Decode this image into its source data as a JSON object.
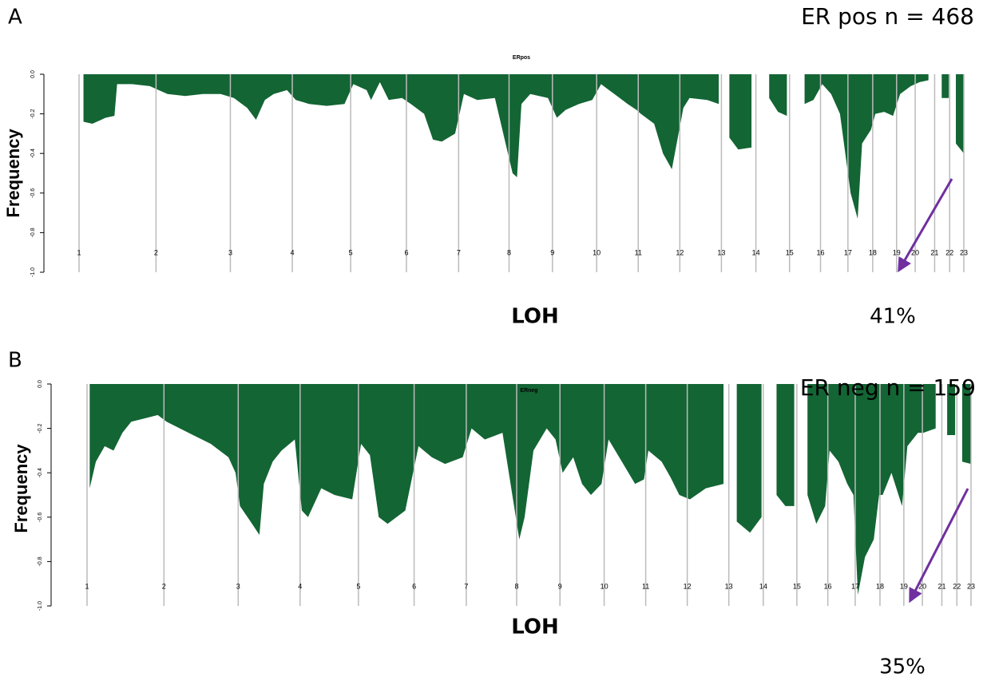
{
  "chart_data": [
    {
      "type": "area",
      "panel": "A",
      "title": "ERpos",
      "annotation": "ER pos n = 468",
      "percent_label": "41%",
      "x_label": "LOH",
      "y_label": "Frequency",
      "color": "#136534",
      "grid": true,
      "xlim": [
        0,
        100
      ],
      "ylim": [
        -1,
        0
      ],
      "yticks": [
        {
          "value": 0,
          "label": "0.0"
        },
        -0.2,
        -0.4,
        -0.6,
        -0.8,
        {
          "value": -1,
          "label": "-1.0"
        }
      ],
      "xticks": [
        {
          "value": 0,
          "label": "1"
        },
        {
          "value": 8.7,
          "label": "2"
        },
        {
          "value": 17.1,
          "label": "3"
        },
        {
          "value": 24.1,
          "label": "4"
        },
        {
          "value": 30.7,
          "label": "5"
        },
        {
          "value": 37.0,
          "label": "6"
        },
        {
          "value": 42.9,
          "label": "7"
        },
        {
          "value": 48.6,
          "label": "8"
        },
        {
          "value": 53.5,
          "label": "9"
        },
        {
          "value": 58.5,
          "label": "10"
        },
        {
          "value": 63.2,
          "label": "11"
        },
        {
          "value": 67.9,
          "label": "12"
        },
        {
          "value": 72.6,
          "label": "13"
        },
        {
          "value": 76.5,
          "label": "14"
        },
        {
          "value": 80.3,
          "label": "15"
        },
        {
          "value": 83.8,
          "label": "16"
        },
        {
          "value": 86.9,
          "label": "17"
        },
        {
          "value": 89.7,
          "label": "18"
        },
        {
          "value": 92.4,
          "label": "19"
        },
        {
          "value": 94.5,
          "label": "20"
        },
        {
          "value": 96.7,
          "label": "21"
        },
        {
          "value": 98.4,
          "label": "22"
        },
        {
          "value": 100,
          "label": "23"
        }
      ],
      "x": [
        0.5,
        1.5,
        3,
        4,
        4.3,
        6,
        8,
        9,
        10,
        12,
        14,
        16,
        17.5,
        19,
        20,
        21,
        22,
        23.5,
        24.5,
        26,
        28,
        30,
        31,
        32.5,
        33,
        34,
        35,
        36.5,
        37.5,
        39,
        40,
        41,
        42.5,
        43.5,
        45,
        47,
        49,
        49.5,
        50,
        51,
        53,
        54,
        55,
        56.5,
        58,
        59,
        60.5,
        62,
        63,
        63.5,
        65,
        66,
        67,
        68.3,
        69,
        71,
        72.3,
        72.9,
        73.5,
        74.5,
        76,
        77,
        78,
        79,
        80,
        81,
        82,
        83,
        84,
        85,
        86,
        87.2,
        88,
        88.5,
        89.5,
        90,
        91,
        92,
        92.8,
        94,
        95,
        96,
        97,
        97.5,
        98.3,
        98.7,
        99.1,
        100
      ],
      "values": [
        -0.24,
        -0.25,
        -0.22,
        -0.21,
        -0.05,
        -0.05,
        -0.06,
        -0.08,
        -0.1,
        -0.11,
        -0.1,
        -0.1,
        -0.12,
        -0.17,
        -0.23,
        -0.13,
        -0.1,
        -0.08,
        -0.13,
        -0.15,
        -0.16,
        -0.15,
        -0.05,
        -0.08,
        -0.13,
        -0.04,
        -0.13,
        -0.12,
        -0.15,
        -0.2,
        -0.33,
        -0.34,
        -0.3,
        -0.1,
        -0.13,
        -0.12,
        -0.5,
        -0.52,
        -0.15,
        -0.1,
        -0.12,
        -0.22,
        -0.18,
        -0.15,
        -0.13,
        -0.05,
        -0.1,
        -0.15,
        -0.18,
        -0.2,
        -0.25,
        -0.4,
        -0.48,
        -0.17,
        -0.12,
        -0.13,
        -0.15,
        null,
        -0.32,
        -0.38,
        -0.37,
        null,
        -0.12,
        -0.19,
        -0.21,
        null,
        -0.15,
        -0.13,
        -0.05,
        -0.1,
        -0.2,
        -0.6,
        -0.73,
        -0.35,
        -0.28,
        -0.2,
        -0.19,
        -0.21,
        -0.1,
        -0.06,
        -0.04,
        -0.03,
        null,
        -0.12,
        -0.12,
        null,
        -0.35,
        -0.4
      ]
    },
    {
      "type": "area",
      "panel": "B",
      "title": "ERneg",
      "annotation": "ER neg n = 159",
      "percent_label": "35%",
      "x_label": "LOH",
      "y_label": "Frequency",
      "color": "#136534",
      "grid": true,
      "xlim": [
        0,
        100
      ],
      "ylim": [
        -1,
        0
      ],
      "yticks": [
        {
          "value": 0,
          "label": "0.0"
        },
        -0.2,
        -0.4,
        -0.6,
        -0.8,
        {
          "value": -1,
          "label": "-1.0"
        }
      ],
      "xticks": [
        {
          "value": 0,
          "label": "1"
        },
        {
          "value": 8.7,
          "label": "2"
        },
        {
          "value": 17.1,
          "label": "3"
        },
        {
          "value": 24.1,
          "label": "4"
        },
        {
          "value": 30.7,
          "label": "5"
        },
        {
          "value": 37.0,
          "label": "6"
        },
        {
          "value": 42.9,
          "label": "7"
        },
        {
          "value": 48.6,
          "label": "8"
        },
        {
          "value": 53.5,
          "label": "9"
        },
        {
          "value": 58.5,
          "label": "10"
        },
        {
          "value": 63.2,
          "label": "11"
        },
        {
          "value": 67.9,
          "label": "12"
        },
        {
          "value": 72.6,
          "label": "13"
        },
        {
          "value": 76.5,
          "label": "14"
        },
        {
          "value": 80.3,
          "label": "15"
        },
        {
          "value": 83.8,
          "label": "16"
        },
        {
          "value": 86.9,
          "label": "17"
        },
        {
          "value": 89.7,
          "label": "18"
        },
        {
          "value": 92.4,
          "label": "19"
        },
        {
          "value": 94.5,
          "label": "20"
        },
        {
          "value": 96.7,
          "label": "21"
        },
        {
          "value": 98.4,
          "label": "22"
        },
        {
          "value": 100,
          "label": "23"
        }
      ],
      "x": [
        0.3,
        1,
        2,
        3,
        4,
        5,
        6,
        8,
        9,
        10.5,
        12,
        14,
        16,
        16.8,
        17.3,
        18.5,
        19.5,
        20,
        21,
        22,
        23.5,
        24.3,
        25,
        26.5,
        28,
        30,
        31,
        32,
        33,
        34,
        36,
        37.5,
        39,
        40.5,
        42.5,
        43.5,
        45,
        47,
        48.9,
        49.5,
        50.5,
        52,
        53,
        53.8,
        55,
        56,
        57,
        58.2,
        59,
        60.5,
        62,
        63,
        63.5,
        65,
        66,
        67,
        68.2,
        70,
        72,
        72.9,
        73.5,
        75,
        76.3,
        77,
        78,
        79,
        80,
        81,
        81.5,
        82.5,
        83.5,
        84,
        85,
        86,
        86.7,
        87.2,
        88,
        89,
        89.6,
        90,
        91,
        92.2,
        92.8,
        94,
        94.6,
        96,
        96.9,
        97.3,
        98.2,
        98.7,
        99,
        100
      ],
      "values": [
        -0.47,
        -0.35,
        -0.28,
        -0.3,
        -0.22,
        -0.17,
        -0.16,
        -0.14,
        -0.17,
        -0.2,
        -0.23,
        -0.27,
        -0.33,
        -0.4,
        -0.55,
        -0.62,
        -0.68,
        -0.45,
        -0.35,
        -0.3,
        -0.25,
        -0.57,
        -0.6,
        -0.47,
        -0.5,
        -0.52,
        -0.27,
        -0.32,
        -0.6,
        -0.63,
        -0.57,
        -0.28,
        -0.33,
        -0.36,
        -0.33,
        -0.2,
        -0.25,
        -0.22,
        -0.7,
        -0.6,
        -0.3,
        -0.2,
        -0.25,
        -0.4,
        -0.33,
        -0.45,
        -0.5,
        -0.45,
        -0.25,
        -0.35,
        -0.45,
        -0.43,
        -0.3,
        -0.35,
        -0.42,
        -0.5,
        -0.52,
        -0.47,
        -0.45,
        null,
        -0.62,
        -0.67,
        -0.6,
        null,
        -0.5,
        -0.55,
        -0.55,
        null,
        -0.5,
        -0.63,
        -0.55,
        -0.3,
        -0.35,
        -0.45,
        -0.5,
        -0.95,
        -0.78,
        -0.7,
        -0.5,
        -0.5,
        -0.4,
        -0.55,
        -0.28,
        -0.22,
        -0.22,
        -0.2,
        null,
        -0.23,
        -0.23,
        null,
        -0.35,
        -0.36
      ]
    }
  ]
}
